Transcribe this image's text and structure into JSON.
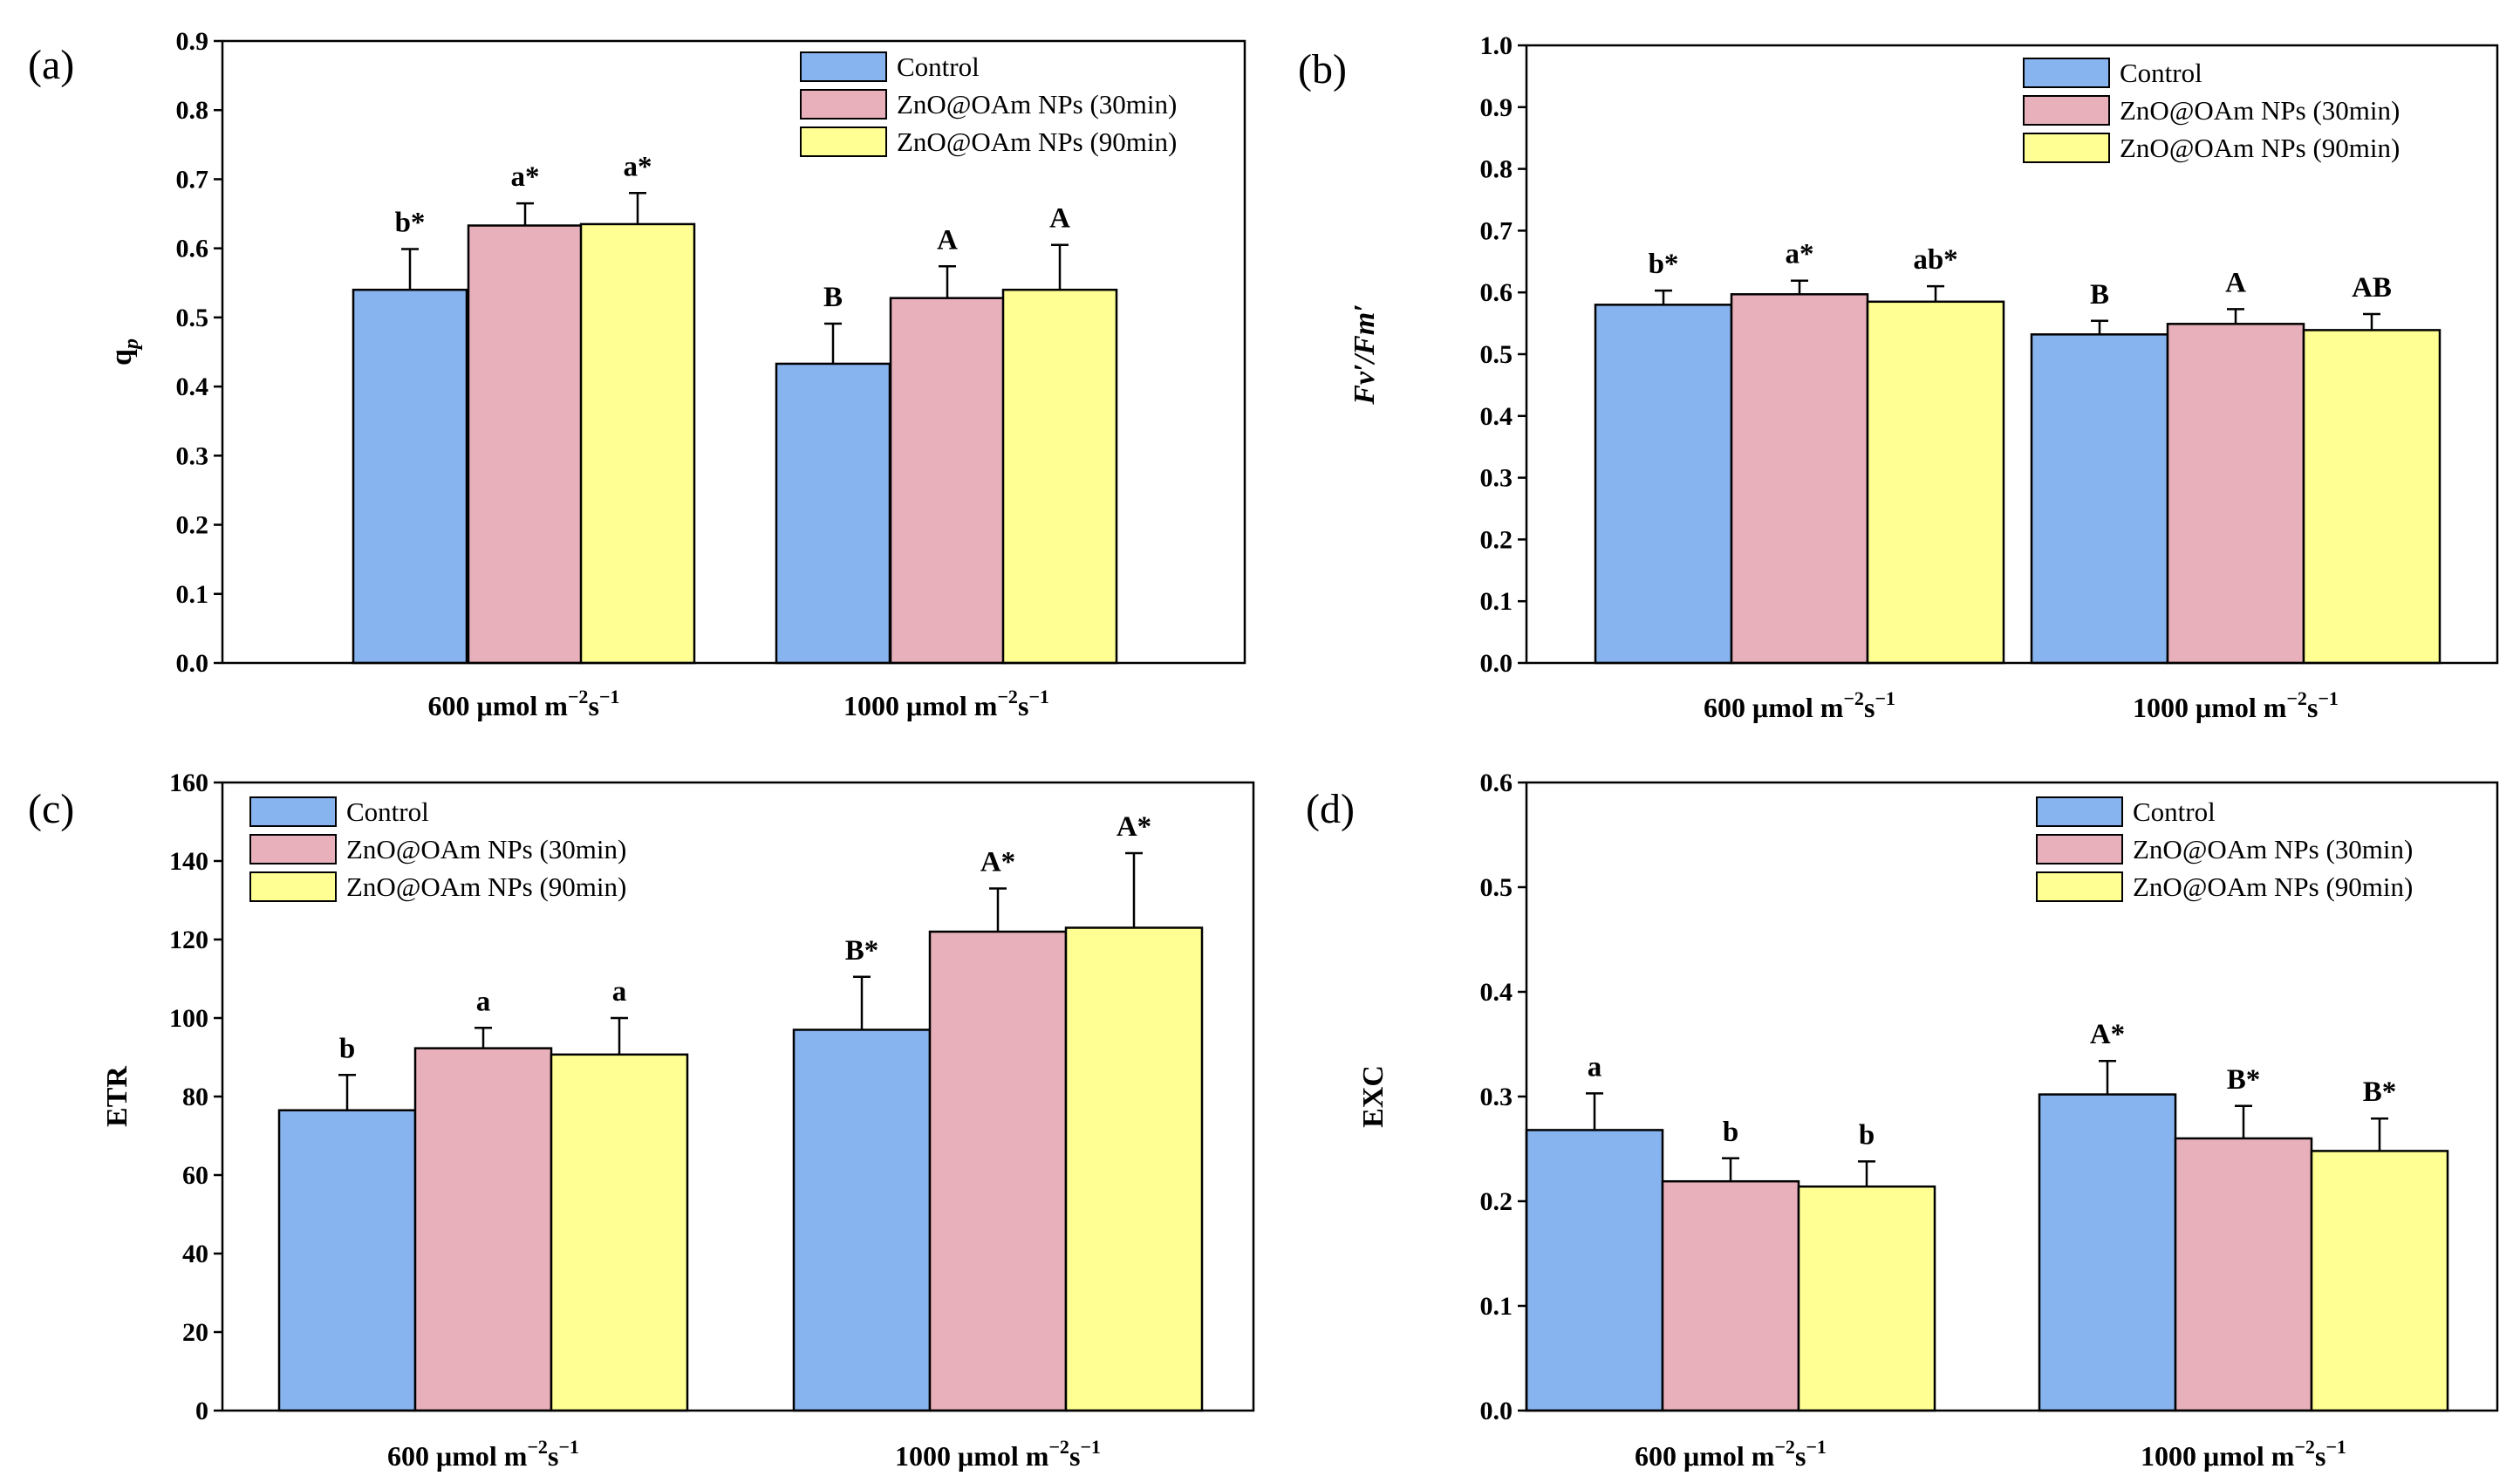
{
  "colors": {
    "Control": "#87b4ef",
    "ZnO@OAm NPs (30min)": "#e8b0ba",
    "ZnO@OAm NPs (90min)": "#ffff94",
    "stroke": "#000000"
  },
  "chart_data": [
    {
      "type": "bar",
      "panel": "(a)",
      "ylabel": "q",
      "ylabel_sub": "p",
      "ylim": [
        0,
        0.9
      ],
      "ytick_step": 0.1,
      "ytick_decimals": 1,
      "categories": [
        "600 μmol m",
        "1000 μmol m"
      ],
      "cat_sup1": "−2",
      "cat_mid": "s",
      "cat_sup2": "−1",
      "legend_position": "top-right",
      "series": [
        {
          "name": "Control",
          "values": [
            0.54,
            0.433
          ],
          "errors": [
            0.059,
            0.058
          ],
          "labels": [
            "b*",
            "B"
          ]
        },
        {
          "name": "ZnO@OAm NPs (30min)",
          "values": [
            0.633,
            0.528
          ],
          "errors": [
            0.032,
            0.046
          ],
          "labels": [
            "a*",
            "A"
          ]
        },
        {
          "name": "ZnO@OAm NPs (90min)",
          "values": [
            0.635,
            0.54
          ],
          "errors": [
            0.045,
            0.065
          ],
          "labels": [
            "a*",
            "A"
          ]
        }
      ]
    },
    {
      "type": "bar",
      "panel": "(b)",
      "ylabel": "Fv′/Fm′",
      "ylim": [
        0,
        1.0
      ],
      "ytick_step": 0.1,
      "ytick_decimals": 1,
      "categories": [
        "600 μmol m",
        "1000 μmol m"
      ],
      "cat_sup1": "−2",
      "cat_mid": "s",
      "cat_sup2": "−1",
      "legend_position": "top-right",
      "series": [
        {
          "name": "Control",
          "values": [
            0.58,
            0.532
          ],
          "errors": [
            0.023,
            0.022
          ],
          "labels": [
            "b*",
            "B"
          ]
        },
        {
          "name": "ZnO@OAm NPs (30min)",
          "values": [
            0.597,
            0.549
          ],
          "errors": [
            0.022,
            0.024
          ],
          "labels": [
            "a*",
            "A"
          ]
        },
        {
          "name": "ZnO@OAm NPs (90min)",
          "values": [
            0.585,
            0.539
          ],
          "errors": [
            0.025,
            0.026
          ],
          "labels": [
            "ab*",
            "AB"
          ]
        }
      ]
    },
    {
      "type": "bar",
      "panel": "(c)",
      "ylabel": "ETR",
      "ylim": [
        0,
        160
      ],
      "ytick_step": 20,
      "ytick_decimals": 0,
      "categories": [
        "600 μmol m",
        "1000 μmol m"
      ],
      "cat_sup1": "−2",
      "cat_mid": "s",
      "cat_sup2": "−1",
      "legend_position": "top-left",
      "series": [
        {
          "name": "Control",
          "values": [
            76.5,
            97
          ],
          "errors": [
            9,
            13.5
          ],
          "labels": [
            "b",
            "B*"
          ]
        },
        {
          "name": "ZnO@OAm NPs (30min)",
          "values": [
            92.3,
            122
          ],
          "errors": [
            5.2,
            11
          ],
          "labels": [
            "a",
            "A*"
          ]
        },
        {
          "name": "ZnO@OAm NPs (90min)",
          "values": [
            90.7,
            123
          ],
          "errors": [
            9.3,
            19
          ],
          "labels": [
            "a",
            "A*"
          ]
        }
      ]
    },
    {
      "type": "bar",
      "panel": "(d)",
      "ylabel": "EXC",
      "ylim": [
        0,
        0.6
      ],
      "ytick_step": 0.1,
      "ytick_decimals": 1,
      "categories": [
        "600 μmol m",
        "1000 μmol m"
      ],
      "cat_sup1": "−2",
      "cat_mid": "s",
      "cat_sup2": "−1",
      "legend_position": "top-right",
      "series": [
        {
          "name": "Control",
          "values": [
            0.268,
            0.302
          ],
          "errors": [
            0.035,
            0.032
          ],
          "labels": [
            "a",
            "A*"
          ]
        },
        {
          "name": "ZnO@OAm NPs (30min)",
          "values": [
            0.219,
            0.26
          ],
          "errors": [
            0.022,
            0.031
          ],
          "labels": [
            "b",
            "B*"
          ]
        },
        {
          "name": "ZnO@OAm NPs (90min)",
          "values": [
            0.214,
            0.248
          ],
          "errors": [
            0.024,
            0.031
          ],
          "labels": [
            "b",
            "B*"
          ]
        }
      ]
    }
  ]
}
